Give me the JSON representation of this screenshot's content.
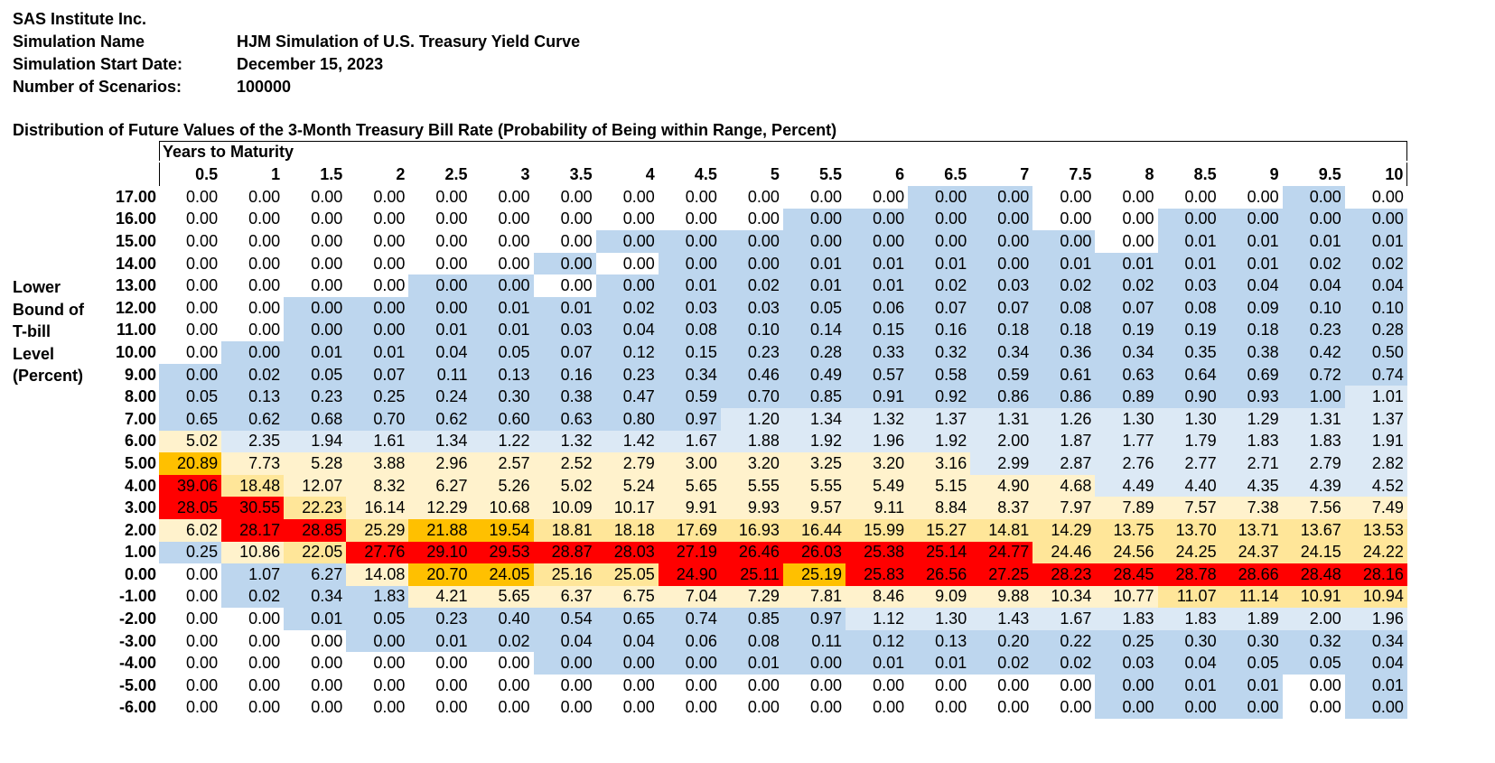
{
  "header": {
    "company": "SAS Institute Inc.",
    "sim_name_label": "Simulation Name",
    "sim_name_value": "HJM Simulation of U.S. Treasury Yield Curve",
    "start_date_label": "Simulation Start Date:",
    "start_date_value": "December 15, 2023",
    "scenarios_label": "Number of Scenarios:",
    "scenarios_value": "100000"
  },
  "table_title": "Distribution of Future Values of the 3-Month Treasury Bill Rate (Probability of Being within Range, Percent)",
  "column_group_label": "Years to Maturity",
  "row_axis_label": [
    "Lower",
    "Bound of",
    "T-bill",
    "Level",
    "(Percent)"
  ],
  "colors": {
    "white": "#ffffff",
    "light_blue": "#dce9f5",
    "blue": "#bdd6ee",
    "pale_yellow": "#fff2cc",
    "yellow": "#ffe699",
    "orange": "#ffc000",
    "red": "#ff0000"
  },
  "columns": [
    "0.5",
    "1",
    "1.5",
    "2",
    "2.5",
    "3",
    "3.5",
    "4",
    "4.5",
    "5",
    "5.5",
    "6",
    "6.5",
    "7",
    "7.5",
    "8",
    "8.5",
    "9",
    "9.5",
    "10"
  ],
  "rows": [
    {
      "label": "17.00",
      "values": [
        "0.00",
        "0.00",
        "0.00",
        "0.00",
        "0.00",
        "0.00",
        "0.00",
        "0.00",
        "0.00",
        "0.00",
        "0.00",
        "0.00",
        "0.00",
        "0.00",
        "0.00",
        "0.00",
        "0.00",
        "0.00",
        "0.00",
        "0.00"
      ]
    },
    {
      "label": "16.00",
      "values": [
        "0.00",
        "0.00",
        "0.00",
        "0.00",
        "0.00",
        "0.00",
        "0.00",
        "0.00",
        "0.00",
        "0.00",
        "0.00",
        "0.00",
        "0.00",
        "0.00",
        "0.00",
        "0.00",
        "0.00",
        "0.00",
        "0.00",
        "0.00"
      ]
    },
    {
      "label": "15.00",
      "values": [
        "0.00",
        "0.00",
        "0.00",
        "0.00",
        "0.00",
        "0.00",
        "0.00",
        "0.00",
        "0.00",
        "0.00",
        "0.00",
        "0.00",
        "0.00",
        "0.00",
        "0.00",
        "0.00",
        "0.01",
        "0.01",
        "0.01",
        "0.01"
      ]
    },
    {
      "label": "14.00",
      "values": [
        "0.00",
        "0.00",
        "0.00",
        "0.00",
        "0.00",
        "0.00",
        "0.00",
        "0.00",
        "0.00",
        "0.00",
        "0.01",
        "0.01",
        "0.01",
        "0.00",
        "0.01",
        "0.01",
        "0.01",
        "0.01",
        "0.02",
        "0.02"
      ]
    },
    {
      "label": "13.00",
      "values": [
        "0.00",
        "0.00",
        "0.00",
        "0.00",
        "0.00",
        "0.00",
        "0.00",
        "0.00",
        "0.01",
        "0.02",
        "0.01",
        "0.01",
        "0.02",
        "0.03",
        "0.02",
        "0.02",
        "0.03",
        "0.04",
        "0.04",
        "0.04"
      ]
    },
    {
      "label": "12.00",
      "values": [
        "0.00",
        "0.00",
        "0.00",
        "0.00",
        "0.00",
        "0.01",
        "0.01",
        "0.02",
        "0.03",
        "0.03",
        "0.05",
        "0.06",
        "0.07",
        "0.07",
        "0.08",
        "0.07",
        "0.08",
        "0.09",
        "0.10",
        "0.10"
      ]
    },
    {
      "label": "11.00",
      "values": [
        "0.00",
        "0.00",
        "0.00",
        "0.00",
        "0.01",
        "0.01",
        "0.03",
        "0.04",
        "0.08",
        "0.10",
        "0.14",
        "0.15",
        "0.16",
        "0.18",
        "0.18",
        "0.19",
        "0.19",
        "0.18",
        "0.23",
        "0.28"
      ]
    },
    {
      "label": "10.00",
      "values": [
        "0.00",
        "0.00",
        "0.01",
        "0.01",
        "0.04",
        "0.05",
        "0.07",
        "0.12",
        "0.15",
        "0.23",
        "0.28",
        "0.33",
        "0.32",
        "0.34",
        "0.36",
        "0.34",
        "0.35",
        "0.38",
        "0.42",
        "0.50"
      ]
    },
    {
      "label": "9.00",
      "values": [
        "0.00",
        "0.02",
        "0.05",
        "0.07",
        "0.11",
        "0.13",
        "0.16",
        "0.23",
        "0.34",
        "0.46",
        "0.49",
        "0.57",
        "0.58",
        "0.59",
        "0.61",
        "0.63",
        "0.64",
        "0.69",
        "0.72",
        "0.74"
      ]
    },
    {
      "label": "8.00",
      "values": [
        "0.05",
        "0.13",
        "0.23",
        "0.25",
        "0.24",
        "0.30",
        "0.38",
        "0.47",
        "0.59",
        "0.70",
        "0.85",
        "0.91",
        "0.92",
        "0.86",
        "0.86",
        "0.89",
        "0.90",
        "0.93",
        "1.00",
        "1.01"
      ]
    },
    {
      "label": "7.00",
      "values": [
        "0.65",
        "0.62",
        "0.68",
        "0.70",
        "0.62",
        "0.60",
        "0.63",
        "0.80",
        "0.97",
        "1.20",
        "1.34",
        "1.32",
        "1.37",
        "1.31",
        "1.26",
        "1.30",
        "1.30",
        "1.29",
        "1.31",
        "1.37"
      ]
    },
    {
      "label": "6.00",
      "values": [
        "5.02",
        "2.35",
        "1.94",
        "1.61",
        "1.34",
        "1.22",
        "1.32",
        "1.42",
        "1.67",
        "1.88",
        "1.92",
        "1.96",
        "1.92",
        "2.00",
        "1.87",
        "1.77",
        "1.79",
        "1.83",
        "1.83",
        "1.91"
      ]
    },
    {
      "label": "5.00",
      "values": [
        "20.89",
        "7.73",
        "5.28",
        "3.88",
        "2.96",
        "2.57",
        "2.52",
        "2.79",
        "3.00",
        "3.20",
        "3.25",
        "3.20",
        "3.16",
        "2.99",
        "2.87",
        "2.76",
        "2.77",
        "2.71",
        "2.79",
        "2.82"
      ]
    },
    {
      "label": "4.00",
      "values": [
        "39.06",
        "18.48",
        "12.07",
        "8.32",
        "6.27",
        "5.26",
        "5.02",
        "5.24",
        "5.65",
        "5.55",
        "5.55",
        "5.49",
        "5.15",
        "4.90",
        "4.68",
        "4.49",
        "4.40",
        "4.35",
        "4.39",
        "4.52"
      ]
    },
    {
      "label": "3.00",
      "values": [
        "28.05",
        "30.55",
        "22.23",
        "16.14",
        "12.29",
        "10.68",
        "10.09",
        "10.17",
        "9.91",
        "9.93",
        "9.57",
        "9.11",
        "8.84",
        "8.37",
        "7.97",
        "7.89",
        "7.57",
        "7.38",
        "7.56",
        "7.49"
      ]
    },
    {
      "label": "2.00",
      "values": [
        "6.02",
        "28.17",
        "28.85",
        "25.29",
        "21.88",
        "19.54",
        "18.81",
        "18.18",
        "17.69",
        "16.93",
        "16.44",
        "15.99",
        "15.27",
        "14.81",
        "14.29",
        "13.75",
        "13.70",
        "13.71",
        "13.67",
        "13.53"
      ]
    },
    {
      "label": "1.00",
      "values": [
        "0.25",
        "10.86",
        "22.05",
        "27.76",
        "29.10",
        "29.53",
        "28.87",
        "28.03",
        "27.19",
        "26.46",
        "26.03",
        "25.38",
        "25.14",
        "24.77",
        "24.46",
        "24.56",
        "24.25",
        "24.37",
        "24.15",
        "24.22"
      ]
    },
    {
      "label": "0.00",
      "values": [
        "0.00",
        "1.07",
        "6.27",
        "14.08",
        "20.70",
        "24.05",
        "25.16",
        "25.05",
        "24.90",
        "25.11",
        "25.19",
        "25.83",
        "26.56",
        "27.25",
        "28.23",
        "28.45",
        "28.78",
        "28.66",
        "28.48",
        "28.16"
      ]
    },
    {
      "label": "-1.00",
      "values": [
        "0.00",
        "0.02",
        "0.34",
        "1.83",
        "4.21",
        "5.65",
        "6.37",
        "6.75",
        "7.04",
        "7.29",
        "7.81",
        "8.46",
        "9.09",
        "9.88",
        "10.34",
        "10.77",
        "11.07",
        "11.14",
        "10.91",
        "10.94"
      ]
    },
    {
      "label": "-2.00",
      "values": [
        "0.00",
        "0.00",
        "0.01",
        "0.05",
        "0.23",
        "0.40",
        "0.54",
        "0.65",
        "0.74",
        "0.85",
        "0.97",
        "1.12",
        "1.30",
        "1.43",
        "1.67",
        "1.83",
        "1.83",
        "1.89",
        "2.00",
        "1.96"
      ]
    },
    {
      "label": "-3.00",
      "values": [
        "0.00",
        "0.00",
        "0.00",
        "0.00",
        "0.01",
        "0.02",
        "0.04",
        "0.04",
        "0.06",
        "0.08",
        "0.11",
        "0.12",
        "0.13",
        "0.20",
        "0.22",
        "0.25",
        "0.30",
        "0.30",
        "0.32",
        "0.34"
      ]
    },
    {
      "label": "-4.00",
      "values": [
        "0.00",
        "0.00",
        "0.00",
        "0.00",
        "0.00",
        "0.00",
        "0.00",
        "0.00",
        "0.00",
        "0.01",
        "0.00",
        "0.01",
        "0.01",
        "0.02",
        "0.02",
        "0.03",
        "0.04",
        "0.05",
        "0.05",
        "0.04"
      ]
    },
    {
      "label": "-5.00",
      "values": [
        "0.00",
        "0.00",
        "0.00",
        "0.00",
        "0.00",
        "0.00",
        "0.00",
        "0.00",
        "0.00",
        "0.00",
        "0.00",
        "0.00",
        "0.00",
        "0.00",
        "0.00",
        "0.00",
        "0.01",
        "0.01",
        "0.00",
        "0.01"
      ]
    },
    {
      "label": "-6.00",
      "values": [
        "0.00",
        "0.00",
        "0.00",
        "0.00",
        "0.00",
        "0.00",
        "0.00",
        "0.00",
        "0.00",
        "0.00",
        "0.00",
        "0.00",
        "0.00",
        "0.00",
        "0.00",
        "0.00",
        "0.00",
        "0.00",
        "0.00",
        "0.00"
      ]
    }
  ],
  "cell_fill": [
    "wwwwwwwwwwwwbbwwwwbw",
    "wwwwwwwwwwbbbbwwbbbb",
    "wwwwwwwbbbbbbbbwbbbb",
    "wwwwwwbwbbbbbbbbbbbb",
    "wwwwbbwbbbbbbbbbbbbb",
    "wwbbbbbbbbbbbbbbbbbb",
    "wwbbbbbbbbbbbbbbbbbb",
    "wbbbbbbbbbbbbbbbbbbb",
    "bbbbbbbbbbbbbbbbbbbb",
    "bbbbbbbbbbbbbbbbbbbl",
    "bbbbbbbbbllllllllllll",
    "pllllllllllllllllllll",
    "opppppppppppplllllll",
    "ryppppppppppppplllll",
    "rrypppppppppppppppppp",
    "prryooyyyyyyyyyyyyyyy",
    "bpyrrrrrrrrrrryyyyyyy",
    "wbbpooyyrrorrrrrrrrrr",
    "wbbbppppppppppppyyyyy",
    "wwbbbbbbbbblllllllll",
    "wwwbbbbbbbbbbbbbbbbb",
    "wwwwwwbbbbbbbbbbbbbb",
    "wwwwwwwwwwwwwwwbbbwb",
    "wwwwwwwwwwwwwwwbbbwb"
  ]
}
